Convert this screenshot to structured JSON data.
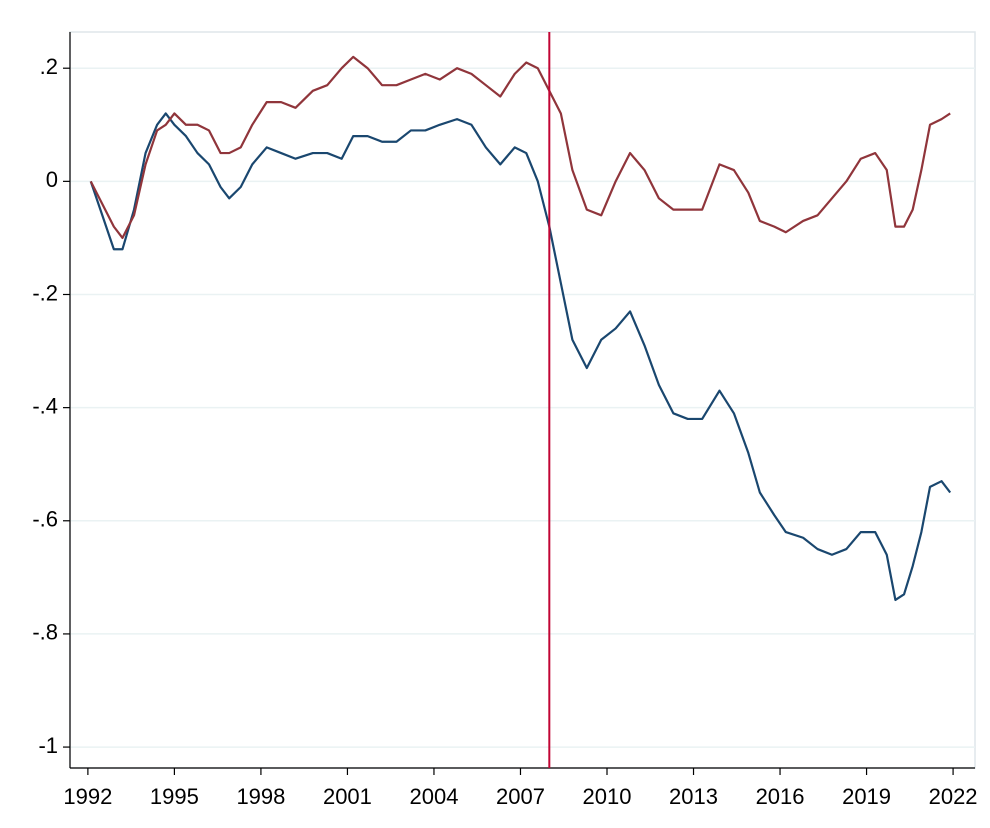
{
  "chart_data": {
    "type": "line",
    "x": [
      1992.1,
      1992.5,
      1992.9,
      1993.2,
      1993.6,
      1994.0,
      1994.4,
      1994.7,
      1995.0,
      1995.4,
      1995.8,
      1996.2,
      1996.6,
      1996.9,
      1997.3,
      1997.7,
      1998.2,
      1998.7,
      1999.2,
      1999.8,
      2000.3,
      2000.8,
      2001.2,
      2001.7,
      2002.2,
      2002.7,
      2003.2,
      2003.7,
      2004.2,
      2004.8,
      2005.3,
      2005.8,
      2006.3,
      2006.8,
      2007.2,
      2007.6,
      2008.0,
      2008.4,
      2008.8,
      2009.3,
      2009.8,
      2010.3,
      2010.8,
      2011.3,
      2011.8,
      2012.3,
      2012.8,
      2013.3,
      2013.9,
      2014.4,
      2014.9,
      2015.3,
      2015.8,
      2016.2,
      2016.8,
      2017.3,
      2017.8,
      2018.3,
      2018.8,
      2019.3,
      2019.7,
      2020.0,
      2020.3,
      2020.6,
      2020.9,
      2021.2,
      2021.6,
      2021.9
    ],
    "series": [
      {
        "color": "#1a476f",
        "values": [
          0,
          -0.06,
          -0.12,
          -0.12,
          -0.05,
          0.05,
          0.1,
          0.12,
          0.1,
          0.08,
          0.05,
          0.03,
          -0.01,
          -0.03,
          -0.01,
          0.03,
          0.06,
          0.05,
          0.04,
          0.05,
          0.05,
          0.04,
          0.08,
          0.08,
          0.07,
          0.07,
          0.09,
          0.09,
          0.1,
          0.11,
          0.1,
          0.06,
          0.03,
          0.06,
          0.05,
          0.0,
          -0.08,
          -0.18,
          -0.28,
          -0.33,
          -0.28,
          -0.26,
          -0.23,
          -0.29,
          -0.36,
          -0.41,
          -0.42,
          -0.42,
          -0.37,
          -0.41,
          -0.48,
          -0.55,
          -0.59,
          -0.62,
          -0.63,
          -0.65,
          -0.66,
          -0.65,
          -0.62,
          -0.62,
          -0.66,
          -0.74,
          -0.73,
          -0.68,
          -0.62,
          -0.54,
          -0.53,
          -0.55
        ]
      },
      {
        "color": "#90353b",
        "values": [
          0,
          -0.04,
          -0.08,
          -0.1,
          -0.06,
          0.03,
          0.09,
          0.1,
          0.12,
          0.1,
          0.1,
          0.09,
          0.05,
          0.05,
          0.06,
          0.1,
          0.14,
          0.14,
          0.13,
          0.16,
          0.17,
          0.2,
          0.22,
          0.2,
          0.17,
          0.17,
          0.18,
          0.19,
          0.18,
          0.2,
          0.19,
          0.17,
          0.15,
          0.19,
          0.21,
          0.2,
          0.16,
          0.12,
          0.02,
          -0.05,
          -0.06,
          0.0,
          0.05,
          0.02,
          -0.03,
          -0.05,
          -0.05,
          -0.05,
          0.03,
          0.02,
          -0.02,
          -0.07,
          -0.08,
          -0.09,
          -0.07,
          -0.06,
          -0.03,
          0.0,
          0.04,
          0.05,
          0.02,
          -0.08,
          -0.08,
          -0.05,
          0.02,
          0.1,
          0.11,
          0.12
        ]
      }
    ],
    "vline": 2008,
    "vline_color": "#c10534",
    "xlim": [
      1991.38,
      2022.76
    ],
    "xticks": [
      1992,
      1995,
      1998,
      2001,
      2004,
      2007,
      2010,
      2013,
      2016,
      2019,
      2022
    ],
    "ylim": [
      -1.037,
      0.264
    ],
    "yticks": [
      {
        "value": 0.2,
        "label": ".2"
      },
      0,
      {
        "value": -0.2,
        "label": "-.2"
      },
      {
        "value": -0.4,
        "label": "-.4"
      },
      {
        "value": -0.6,
        "label": "-.6"
      },
      {
        "value": -0.8,
        "label": "-.8"
      },
      {
        "value": -1,
        "label": "-1"
      }
    ],
    "grid": true
  }
}
